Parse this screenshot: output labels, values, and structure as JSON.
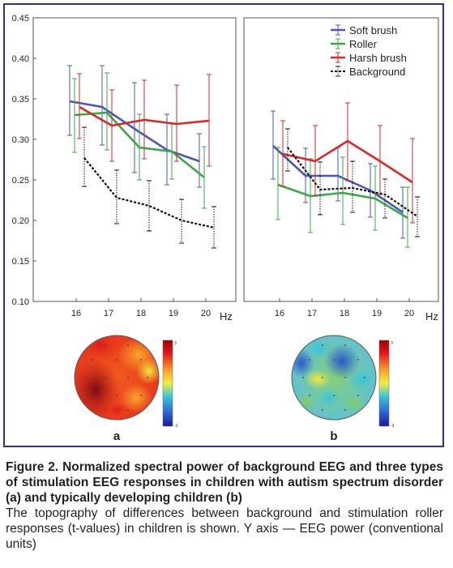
{
  "chart_data": [
    {
      "type": "line",
      "panel": "a",
      "x": [
        16,
        17,
        18,
        19,
        20
      ],
      "xlabel": "Hz",
      "ylabel": "",
      "ylim": [
        0.1,
        0.45
      ],
      "yticks": [
        "0.45",
        "0.40",
        "0.35",
        "0.30",
        "0.25",
        "0.20",
        "0.15",
        "0.10"
      ],
      "grid": false,
      "legend_position": "none",
      "series": [
        {
          "name": "Soft brush",
          "values": [
            0.347,
            0.34,
            0.313,
            0.287,
            0.273
          ],
          "err_low": [
            0.305,
            0.293,
            0.259,
            0.244,
            0.241
          ],
          "err_high": [
            0.391,
            0.391,
            0.37,
            0.331,
            0.307
          ]
        },
        {
          "name": "Roller",
          "values": [
            0.33,
            0.333,
            0.29,
            0.285,
            0.253
          ],
          "err_low": [
            0.284,
            0.287,
            0.25,
            0.251,
            0.215
          ],
          "err_high": [
            0.375,
            0.382,
            0.331,
            0.319,
            0.291
          ]
        },
        {
          "name": "Harsh brush",
          "values": [
            0.34,
            0.317,
            0.324,
            0.319,
            0.323
          ],
          "err_low": [
            0.301,
            0.273,
            0.276,
            0.273,
            0.267
          ],
          "err_high": [
            0.381,
            0.361,
            0.373,
            0.367,
            0.38
          ]
        },
        {
          "name": "Background",
          "values": [
            0.277,
            0.228,
            0.218,
            0.2,
            0.191
          ],
          "err_low": [
            0.242,
            0.196,
            0.187,
            0.172,
            0.166
          ],
          "err_high": [
            0.315,
            0.262,
            0.249,
            0.226,
            0.217
          ]
        }
      ]
    },
    {
      "type": "line",
      "panel": "b",
      "x": [
        16,
        17,
        18,
        19,
        20
      ],
      "xlabel": "Hz",
      "ylabel": "",
      "ylim": [
        0.1,
        0.45
      ],
      "grid": false,
      "legend_position": "top-right",
      "series": [
        {
          "name": "Soft brush",
          "values": [
            0.292,
            0.255,
            0.255,
            0.237,
            0.21
          ],
          "err_low": [
            0.251,
            0.222,
            0.224,
            0.204,
            0.178
          ],
          "err_high": [
            0.335,
            0.289,
            0.29,
            0.27,
            0.241
          ]
        },
        {
          "name": "Roller",
          "values": [
            0.244,
            0.23,
            0.234,
            0.227,
            0.203
          ],
          "err_low": [
            0.201,
            0.185,
            0.195,
            0.188,
            0.167
          ],
          "err_high": [
            0.29,
            0.276,
            0.278,
            0.267,
            0.241
          ]
        },
        {
          "name": "Harsh brush",
          "values": [
            0.282,
            0.273,
            0.298,
            0.273,
            0.247
          ],
          "err_low": [
            0.242,
            0.23,
            0.249,
            0.232,
            0.197
          ],
          "err_high": [
            0.323,
            0.317,
            0.345,
            0.317,
            0.301
          ]
        },
        {
          "name": "Background",
          "values": [
            0.29,
            0.238,
            0.24,
            0.232,
            0.205
          ],
          "err_low": [
            0.261,
            0.207,
            0.21,
            0.203,
            0.18
          ],
          "err_high": [
            0.313,
            0.272,
            0.273,
            0.251,
            0.229
          ]
        }
      ]
    }
  ],
  "colors": {
    "soft_brush": "#4a57b8",
    "roller": "#3aa844",
    "harsh_brush": "#d42a2a",
    "background": "#111111",
    "frame": "#3c2a7c"
  },
  "topomaps": [
    {
      "label": "a",
      "scale_top": "3",
      "scale_bottom": "-3"
    },
    {
      "label": "b",
      "scale_top": "3",
      "scale_bottom": "-3"
    }
  ],
  "caption": {
    "title": "Figure 2. Normalized spectral power of background EEG and three types of stimulation EEG responses in children with autism spectrum disorder (a) and typically developing children (b)",
    "body": "The topography of differences between background and stimulation roller responses (t-values) in children is shown. Y axis — EEG power (conventional units)"
  }
}
